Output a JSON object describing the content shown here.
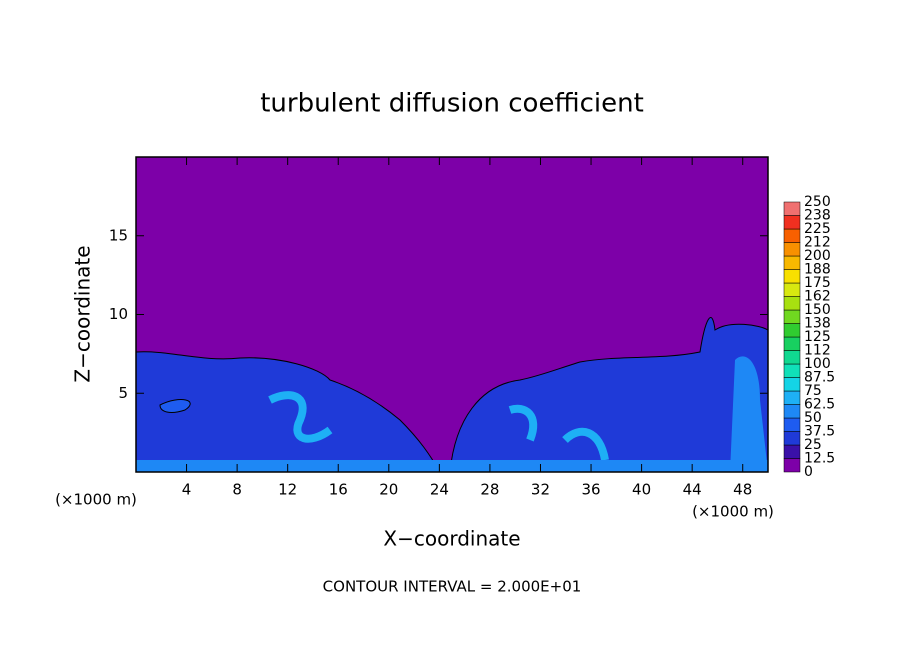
{
  "chart_data": {
    "type": "contour",
    "title": "turbulent diffusion coefficient",
    "x_label": "X−coordinate",
    "y_label": "Z−coordinate",
    "x_unit": "(×1000 m)",
    "x_unit_right": "(×1000 m)",
    "footnote": "CONTOUR INTERVAL = 2.000E+01",
    "xlim": [
      0,
      50
    ],
    "ylim": [
      0,
      20
    ],
    "xticks": [
      4,
      8,
      12,
      16,
      20,
      24,
      28,
      32,
      36,
      40,
      44,
      48
    ],
    "yticks": [
      5,
      10,
      15
    ],
    "colorbar": {
      "levels": [
        0,
        12.5,
        25,
        37.5,
        50,
        62.5,
        75,
        87.5,
        100,
        {
          "value": 112.5,
          "label": "112"
        },
        125,
        {
          "value": 137.5,
          "label": "138"
        },
        150,
        {
          "value": 162.5,
          "label": "162"
        },
        175,
        {
          "value": 187.5,
          "label": "188"
        },
        200,
        {
          "value": 212.5,
          "label": "212"
        },
        225,
        {
          "value": 237.5,
          "label": "238"
        },
        250
      ],
      "colors": [
        "#7d00a8",
        "#3a10a8",
        "#1f3ad8",
        "#1e5cf0",
        "#1e88f5",
        "#1eb0f5",
        "#14d4e6",
        "#10e0b8",
        "#10d890",
        "#18d060",
        "#30cc30",
        "#70d820",
        "#a8e010",
        "#d8e810",
        "#f8e000",
        "#f8b800",
        "#f89000",
        "#f86000",
        "#f03020",
        "#f07070"
      ]
    }
  }
}
